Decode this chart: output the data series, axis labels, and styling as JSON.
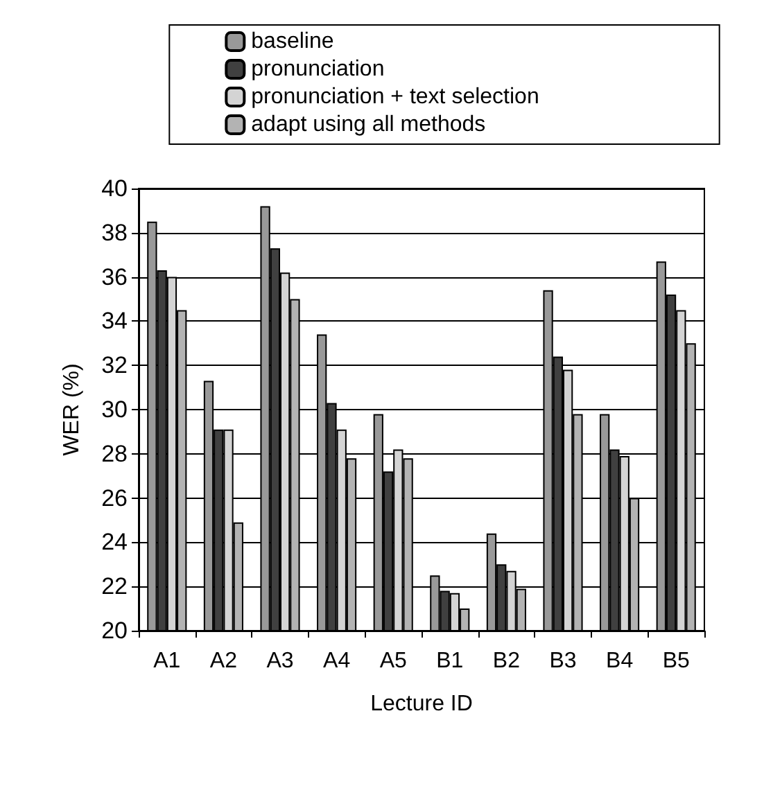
{
  "chart_data": {
    "type": "bar",
    "xlabel": "Lecture ID",
    "ylabel": "WER (%)",
    "categories": [
      "A1",
      "A2",
      "A3",
      "A4",
      "A5",
      "B1",
      "B2",
      "B3",
      "B4",
      "B5"
    ],
    "series": [
      {
        "name": "baseline",
        "color": "#999999",
        "values": [
          38.5,
          31.3,
          39.2,
          33.4,
          29.8,
          22.5,
          24.4,
          35.4,
          29.8,
          36.7
        ]
      },
      {
        "name": "pronunciation",
        "color": "#404040",
        "values": [
          36.3,
          29.1,
          37.3,
          30.3,
          27.2,
          21.8,
          23.0,
          32.4,
          28.2,
          35.2
        ]
      },
      {
        "name": "pronunciation + text selection",
        "color": "#d4d4d4",
        "values": [
          36.0,
          29.1,
          36.2,
          29.1,
          28.2,
          21.7,
          22.7,
          31.8,
          27.9,
          34.5
        ]
      },
      {
        "name": "adapt using all methods",
        "color": "#b3b3b3",
        "values": [
          34.5,
          24.9,
          35.0,
          27.8,
          27.8,
          21.0,
          21.9,
          29.8,
          26.0,
          33.0
        ]
      }
    ],
    "ylim": [
      20,
      40
    ],
    "yticks": [
      20,
      22,
      24,
      26,
      28,
      30,
      32,
      34,
      36,
      38,
      40
    ],
    "grid": "y",
    "legend": "top"
  }
}
